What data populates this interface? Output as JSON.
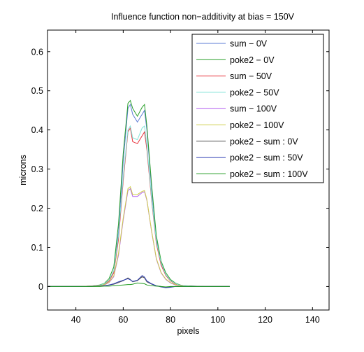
{
  "chart_data": {
    "type": "line",
    "title": "Influence function non−additivity at bias = 150V",
    "xlabel": "pixels",
    "ylabel": "microns",
    "xlim": [
      28,
      147
    ],
    "ylim": [
      -0.06,
      0.655
    ],
    "xticks": [
      40,
      60,
      80,
      100,
      120,
      140
    ],
    "yticks": [
      0,
      0.1,
      0.2,
      0.3,
      0.4,
      0.5,
      0.6
    ],
    "ytick_labels": [
      "0",
      "0.1",
      "0.2",
      "0.3",
      "0.4",
      "0.5",
      "0.6"
    ],
    "grid": false,
    "legend_position": "top-right",
    "x": [
      28,
      40,
      46,
      50,
      52,
      54,
      56,
      58,
      60,
      62,
      63,
      64,
      66,
      68,
      69,
      70,
      72,
      74,
      76,
      78,
      80,
      82,
      84,
      86,
      90,
      95,
      100,
      105
    ],
    "series": [
      {
        "name": "sum − 0V",
        "color": "#5b7bd5",
        "values": [
          0,
          0,
          0.001,
          0.003,
          0.006,
          0.015,
          0.04,
          0.14,
          0.32,
          0.455,
          0.465,
          0.44,
          0.42,
          0.44,
          0.45,
          0.4,
          0.25,
          0.12,
          0.06,
          0.03,
          0.015,
          0.008,
          0.004,
          0.002,
          0.001,
          0,
          0,
          0
        ]
      },
      {
        "name": "poke2 − 0V",
        "color": "#2ca02c",
        "values": [
          0,
          0,
          0.001,
          0.004,
          0.008,
          0.02,
          0.05,
          0.16,
          0.34,
          0.468,
          0.475,
          0.455,
          0.435,
          0.458,
          0.465,
          0.41,
          0.26,
          0.13,
          0.065,
          0.035,
          0.018,
          0.009,
          0.004,
          0.002,
          0.001,
          0,
          0,
          0
        ]
      },
      {
        "name": "sum − 50V",
        "color": "#e8323c",
        "values": [
          0,
          0,
          0.001,
          0.003,
          0.006,
          0.014,
          0.035,
          0.12,
          0.27,
          0.395,
          0.405,
          0.37,
          0.365,
          0.385,
          0.395,
          0.35,
          0.22,
          0.11,
          0.055,
          0.028,
          0.014,
          0.007,
          0.003,
          0.001,
          0,
          0,
          0,
          0
        ]
      },
      {
        "name": "poke2 − 50V",
        "color": "#7fe3d8",
        "values": [
          0,
          0,
          0.001,
          0.003,
          0.007,
          0.016,
          0.04,
          0.13,
          0.28,
          0.4,
          0.41,
          0.38,
          0.375,
          0.405,
          0.41,
          0.36,
          0.225,
          0.115,
          0.06,
          0.03,
          0.015,
          0.008,
          0.003,
          0.002,
          0,
          0,
          0,
          0
        ]
      },
      {
        "name": "sum − 100V",
        "color": "#b25ff0",
        "values": [
          0,
          0,
          0.001,
          0.002,
          0.004,
          0.01,
          0.025,
          0.08,
          0.17,
          0.245,
          0.25,
          0.23,
          0.23,
          0.24,
          0.242,
          0.22,
          0.14,
          0.07,
          0.035,
          0.018,
          0.009,
          0.004,
          0.002,
          0.001,
          0,
          0,
          0,
          0
        ]
      },
      {
        "name": "poke2 − 100V",
        "color": "#cfcf4a",
        "values": [
          0,
          0,
          0.001,
          0.002,
          0.005,
          0.011,
          0.027,
          0.085,
          0.175,
          0.25,
          0.255,
          0.235,
          0.235,
          0.243,
          0.245,
          0.222,
          0.142,
          0.072,
          0.036,
          0.019,
          0.01,
          0.005,
          0.002,
          0.001,
          0,
          0,
          0,
          0
        ]
      },
      {
        "name": "poke2 − sum : 0V",
        "color": "#555555",
        "values": [
          0,
          0,
          0,
          0.001,
          0.002,
          0.004,
          0.006,
          0.01,
          0.015,
          0.022,
          0.018,
          0.012,
          0.015,
          0.025,
          0.022,
          0.012,
          0.006,
          0.002,
          0,
          -0.002,
          -0.001,
          0,
          0,
          0,
          0,
          0,
          0,
          0
        ]
      },
      {
        "name": "poke2 − sum : 50V",
        "color": "#2e3eb5",
        "values": [
          0,
          0,
          0,
          0.001,
          0.002,
          0.004,
          0.007,
          0.012,
          0.016,
          0.02,
          0.017,
          0.013,
          0.016,
          0.028,
          0.024,
          0.014,
          0.007,
          0.002,
          -0.001,
          -0.003,
          -0.002,
          0,
          0,
          0,
          0,
          0,
          0,
          0
        ]
      },
      {
        "name": "poke2 − sum : 100V",
        "color": "#1f9a1f",
        "values": [
          0,
          0,
          0,
          0,
          0.001,
          0.001,
          0.002,
          0.003,
          0.004,
          0.005,
          0.005,
          0.006,
          0.009,
          0.008,
          0.007,
          0.004,
          0.002,
          0.001,
          0,
          -0.001,
          0,
          0,
          0,
          0,
          0,
          0,
          0,
          0
        ]
      }
    ]
  }
}
